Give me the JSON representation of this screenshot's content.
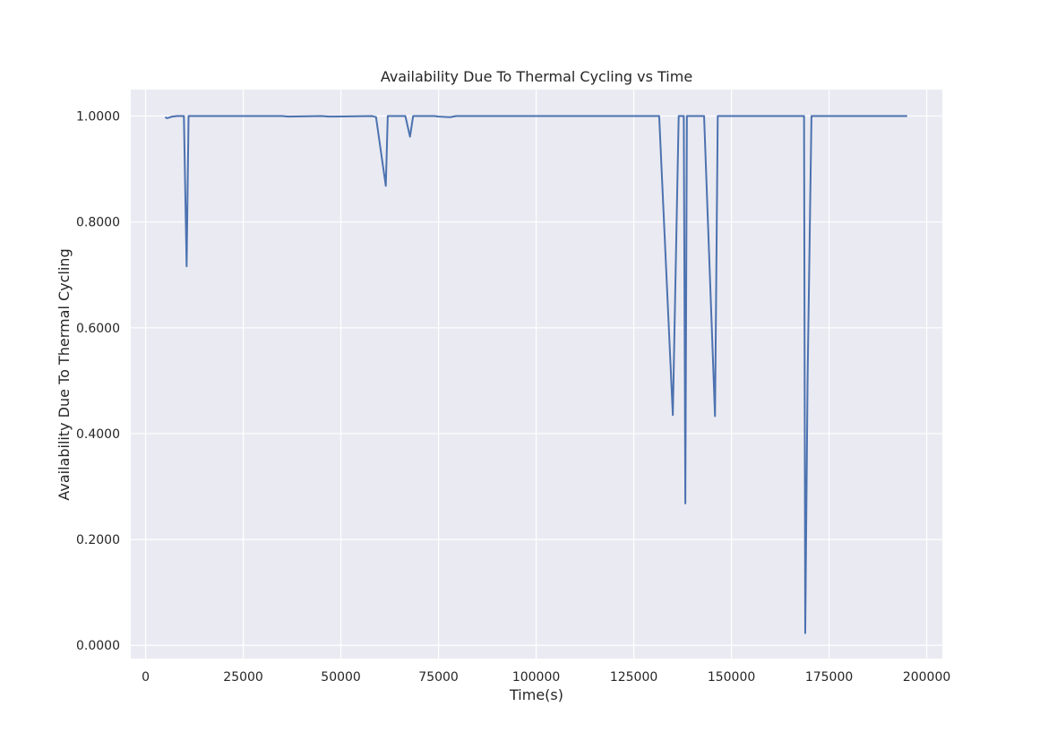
{
  "chart_data": {
    "type": "line",
    "title": "Availability Due To Thermal Cycling vs Time",
    "xlabel": "Time(s)",
    "ylabel": "Availability Due To Thermal Cycling",
    "xlim": [
      -3800,
      204000
    ],
    "ylim": [
      -0.025,
      1.05
    ],
    "xticks": [
      0,
      25000,
      50000,
      75000,
      100000,
      125000,
      150000,
      175000,
      200000
    ],
    "xtick_labels": [
      "0",
      "25000",
      "50000",
      "75000",
      "100000",
      "125000",
      "150000",
      "175000",
      "200000"
    ],
    "yticks": [
      0.0,
      0.2,
      0.4,
      0.6,
      0.8,
      1.0
    ],
    "ytick_labels": [
      "0.0000",
      "0.2000",
      "0.4000",
      "0.6000",
      "0.8000",
      "1.0000"
    ],
    "grid": true,
    "background": "#eaeaf2",
    "grid_color": "#ffffff",
    "series": [
      {
        "color": "#4c72b0",
        "x": [
          5000,
          5500,
          6800,
          8000,
          9800,
          10500,
          11000,
          26000,
          35000,
          36500,
          45000,
          47000,
          58000,
          59000,
          61500,
          62000,
          66500,
          67700,
          68500,
          74000,
          75000,
          78000,
          79500,
          100000,
          130000,
          131500,
          135000,
          136500,
          137800,
          138200,
          138600,
          142500,
          143000,
          145800,
          146500,
          147500,
          150000,
          168000,
          168600,
          168900,
          169500,
          170500,
          195000
        ],
        "y": [
          0.998,
          0.996,
          0.999,
          1.0,
          1.0,
          0.716,
          1.0,
          1.0,
          1.0,
          0.999,
          1.0,
          0.999,
          1.0,
          0.998,
          0.868,
          1.0,
          1.0,
          0.961,
          1.0,
          1.0,
          0.999,
          0.998,
          1.0,
          1.0,
          1.0,
          1.0,
          0.435,
          1.0,
          1.0,
          0.268,
          1.0,
          1.0,
          1.0,
          0.433,
          1.0,
          1.0,
          1.0,
          1.0,
          1.0,
          0.023,
          0.5,
          1.0,
          1.0
        ]
      }
    ]
  }
}
